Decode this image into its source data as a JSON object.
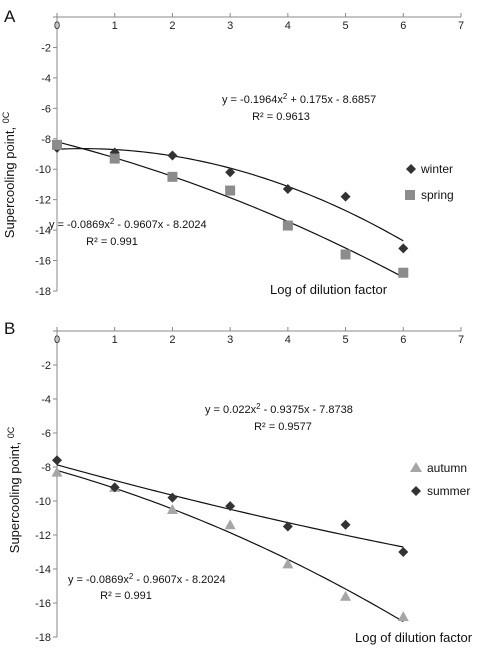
{
  "chart_data": [
    {
      "type": "scatter",
      "panel_label": "A",
      "xlabel": "Log of  dilution factor",
      "ylabel": "Supercooling point,",
      "ylabel_unit": "0C",
      "xlim": [
        0,
        7
      ],
      "ylim": [
        -18,
        0
      ],
      "x_ticks": [
        0,
        1,
        2,
        3,
        4,
        5,
        6,
        7
      ],
      "y_ticks": [
        0,
        -2,
        -4,
        -6,
        -8,
        -10,
        -12,
        -14,
        -16,
        -18
      ],
      "legend_position": "right",
      "grid": false,
      "series": [
        {
          "name": "winter",
          "marker": "diamond",
          "color": "#333333",
          "x": [
            0,
            1,
            2,
            3,
            4,
            5,
            6
          ],
          "y": [
            -8.6,
            -8.9,
            -9.1,
            -10.2,
            -11.3,
            -11.8,
            -15.2
          ],
          "trendline": {
            "type": "poly2",
            "a": -0.1964,
            "b": 0.175,
            "c": -8.6857
          },
          "equation": "y = -0.1964x",
          "equation_rest": " + 0.175x - 8.6857",
          "r2": "R² = 0.9613"
        },
        {
          "name": "spring",
          "marker": "square",
          "color": "#8c8c8c",
          "x": [
            0,
            1,
            2,
            3,
            4,
            5,
            6
          ],
          "y": [
            -8.4,
            -9.3,
            -10.5,
            -11.4,
            -13.7,
            -15.6,
            -16.8
          ],
          "trendline": {
            "type": "poly2",
            "a": -0.0869,
            "b": -0.9607,
            "c": -8.2024
          },
          "equation": "y = -0.0869x",
          "equation_rest": " - 0.9607x - 8.2024",
          "r2": "R² = 0.991"
        }
      ]
    },
    {
      "type": "scatter",
      "panel_label": "B",
      "xlabel": "Log of dilution factor",
      "ylabel": "Supercooling point,",
      "ylabel_unit": "0C",
      "xlim": [
        0,
        7
      ],
      "ylim": [
        -18,
        0
      ],
      "x_ticks": [
        0,
        1,
        2,
        3,
        4,
        5,
        6,
        7
      ],
      "y_ticks": [
        0,
        -2,
        -4,
        -6,
        -8,
        -10,
        -12,
        -14,
        -16,
        -18
      ],
      "legend_position": "right",
      "grid": false,
      "series": [
        {
          "name": "autumn",
          "marker": "triangle",
          "color": "#a6a6a6",
          "x": [
            0,
            1,
            2,
            3,
            4,
            5,
            6
          ],
          "y": [
            -8.3,
            -9.2,
            -10.5,
            -11.4,
            -13.7,
            -15.6,
            -16.8
          ],
          "trendline": {
            "type": "poly2",
            "a": -0.0869,
            "b": -0.9607,
            "c": -8.2024
          },
          "equation": "y = -0.0869x",
          "equation_rest": " - 0.9607x - 8.2024",
          "r2": "R² = 0.991"
        },
        {
          "name": "summer",
          "marker": "diamond",
          "color": "#333333",
          "x": [
            0,
            1,
            2,
            3,
            4,
            5,
            6
          ],
          "y": [
            -7.6,
            -9.2,
            -9.8,
            -10.3,
            -11.5,
            -11.4,
            -13.0
          ],
          "trendline": {
            "type": "poly2",
            "a": 0.022,
            "b": -0.9375,
            "c": -7.8738
          },
          "equation": "y = 0.022x",
          "equation_rest": " - 0.9375x - 7.8738",
          "r2": "R² = 0.9577"
        }
      ]
    }
  ]
}
